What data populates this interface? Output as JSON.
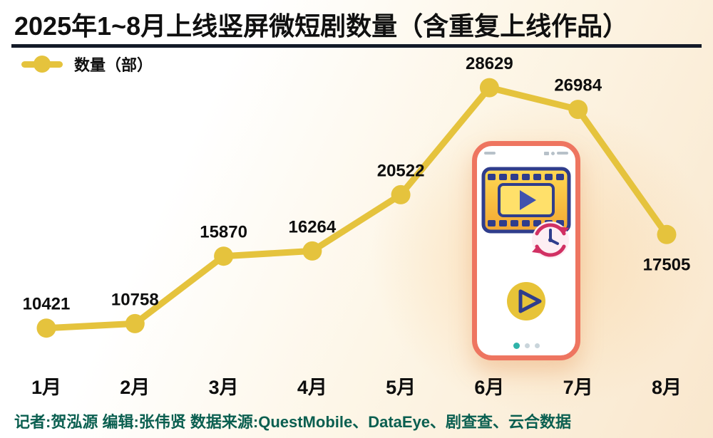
{
  "title": "2025年1~8月上线竖屏微短剧数量（含重复上线作品）",
  "legend": {
    "label": "数量（部）"
  },
  "footer": "记者:贺泓源  编辑:张伟贤  数据来源:QuestMobile、DataEye、剧查查、云合数据",
  "colors": {
    "line": "#e5c33d",
    "label_text": "#0e0e0e",
    "title_text": "#101010",
    "title_rule": "#131a28",
    "footer_text": "#0a5f50",
    "phone_border": "#ee7560",
    "indigo_accent": "#2f3d8c",
    "crimson_accent": "#d13063",
    "teal_dot": "#2fb3a9",
    "gold_fill": "#f2a733"
  },
  "chart_data": {
    "type": "line",
    "categories": [
      "1月",
      "2月",
      "3月",
      "4月",
      "5月",
      "6月",
      "7月",
      "8月"
    ],
    "values": [
      10421,
      10758,
      15870,
      16264,
      20522,
      28629,
      26984,
      17505
    ],
    "series": [
      {
        "name": "数量（部）",
        "values": [
          10421,
          10758,
          15870,
          16264,
          20522,
          28629,
          26984,
          17505
        ]
      }
    ],
    "title": "2025年1~8月上线竖屏微短剧数量（含重复上线作品）",
    "xlabel": "",
    "ylabel": "数量（部）",
    "ylim": [
      9000,
      29500
    ],
    "grid": false,
    "legend_position": "top-left",
    "data_labels": true,
    "label_below_indices": [
      7
    ]
  },
  "phone": {
    "icons": [
      "film-strip-icon",
      "clock-icon",
      "play-button-icon"
    ],
    "pager_dots": 3
  }
}
